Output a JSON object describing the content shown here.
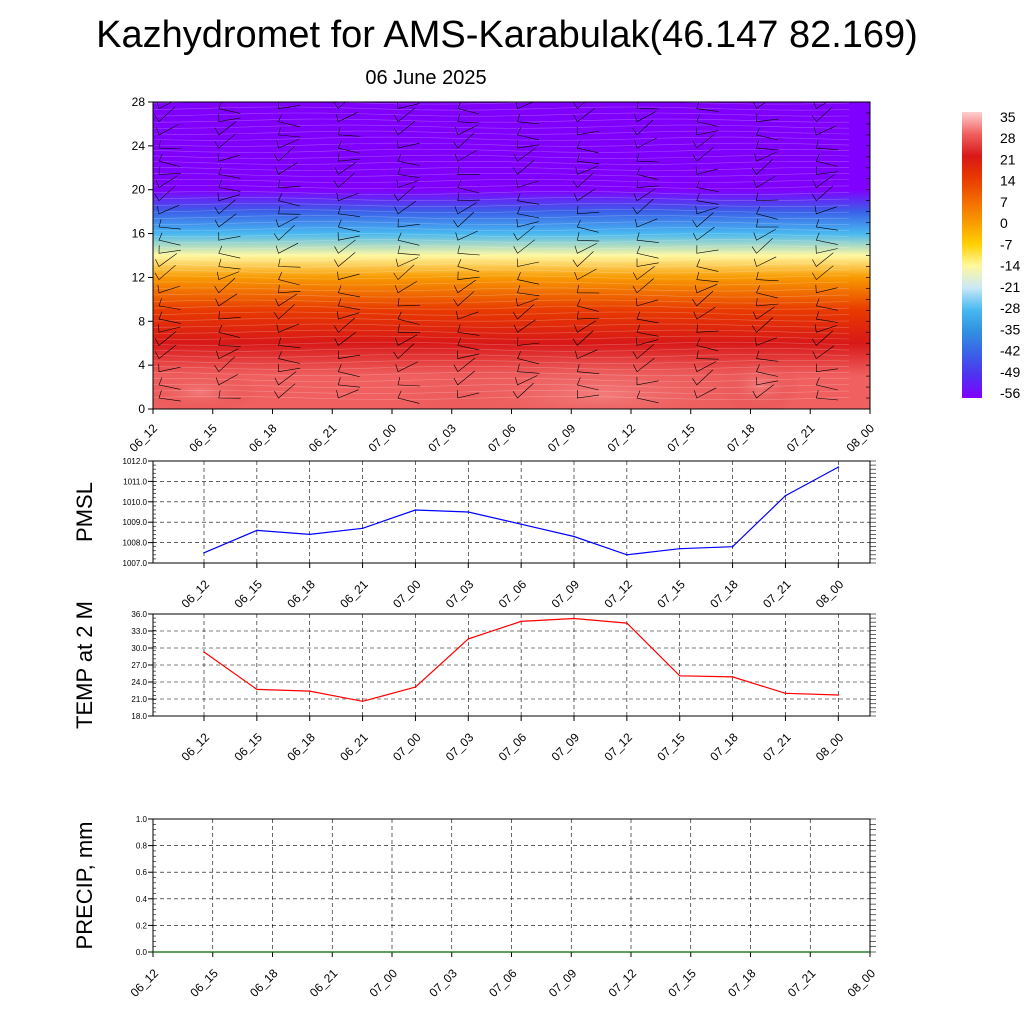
{
  "title": "Kazhydromet for AMS-Karabulak(46.147 82.169)",
  "date": "06 June 2025",
  "time_labels": [
    "06_12",
    "06_15",
    "06_18",
    "06_21",
    "07_00",
    "07_03",
    "07_06",
    "07_09",
    "07_12",
    "07_15",
    "07_18",
    "07_21",
    "08_00"
  ],
  "colorbar": {
    "labels": [
      "35",
      "28",
      "21",
      "14",
      "7",
      "0",
      "-7",
      "-14",
      "-21",
      "-28",
      "-35",
      "-42",
      "-49",
      "-56"
    ],
    "colors": [
      "#ffd0d0",
      "#f06060",
      "#d81818",
      "#e83a00",
      "#f26a00",
      "#f89a00",
      "#ffd000",
      "#fff8a0",
      "#c8e8f8",
      "#48b8f0",
      "#3090e0",
      "#3a60e8",
      "#5030f0",
      "#8000ff"
    ]
  },
  "chart_data": [
    {
      "type": "heatmap",
      "title": "",
      "ylabel": "",
      "ylim": [
        0,
        28
      ],
      "y_ticks": [
        "0",
        "4",
        "8",
        "12",
        "16",
        "20",
        "24",
        "28"
      ],
      "x": [
        "06_12",
        "06_15",
        "06_18",
        "06_21",
        "07_00",
        "07_03",
        "07_06",
        "07_09",
        "07_12",
        "07_15",
        "07_18",
        "07_21",
        "08_00"
      ],
      "colorbar_range": [
        -56,
        35
      ],
      "profile_by_level": [
        [
          0,
          30
        ],
        [
          3,
          28
        ],
        [
          6,
          22
        ],
        [
          9,
          12
        ],
        [
          12,
          2
        ],
        [
          14,
          -12
        ],
        [
          16,
          -28
        ],
        [
          18,
          -42
        ],
        [
          20,
          -54
        ],
        [
          22,
          -58
        ],
        [
          25,
          -56
        ],
        [
          28,
          -54
        ]
      ]
    },
    {
      "type": "line",
      "ylabel": "PMSL",
      "ylim": [
        1007.0,
        1012.0
      ],
      "y_ticks": [
        "1007.0",
        "1008.0",
        "1009.0",
        "1010.0",
        "1011.0",
        "1012.0"
      ],
      "x": [
        "06_12",
        "06_15",
        "06_18",
        "06_21",
        "07_00",
        "07_03",
        "07_06",
        "07_09",
        "07_12",
        "07_15",
        "07_18",
        "07_21",
        "08_00"
      ],
      "series": [
        {
          "color": "#0000ff",
          "values": [
            1007.5,
            1008.6,
            1008.4,
            1008.7,
            1009.6,
            1009.5,
            1008.9,
            1008.3,
            1007.4,
            1007.7,
            1007.8,
            1010.3,
            1011.7
          ]
        }
      ]
    },
    {
      "type": "line",
      "ylabel": "TEMP at 2 M",
      "ylim": [
        18.0,
        36.0
      ],
      "y_ticks": [
        "18.0",
        "21.0",
        "24.0",
        "27.0",
        "30.0",
        "33.0",
        "36.0"
      ],
      "x": [
        "06_12",
        "06_15",
        "06_18",
        "06_21",
        "07_00",
        "07_03",
        "07_06",
        "07_09",
        "07_12",
        "07_15",
        "07_18",
        "07_21",
        "08_00"
      ],
      "series": [
        {
          "color": "#ff0000",
          "values": [
            29.3,
            22.7,
            22.4,
            20.6,
            23.1,
            31.6,
            34.7,
            35.2,
            34.4,
            25.1,
            24.9,
            22.0,
            21.7
          ]
        }
      ]
    },
    {
      "type": "line",
      "ylabel": "PRECIP, mm",
      "ylim": [
        0.0,
        1.0
      ],
      "y_ticks": [
        "0.0",
        "0.2",
        "0.4",
        "0.6",
        "0.8",
        "1.0"
      ],
      "x": [
        "06_12",
        "06_15",
        "06_18",
        "06_21",
        "07_00",
        "07_03",
        "07_06",
        "07_09",
        "07_12",
        "07_15",
        "07_18",
        "07_21",
        "08_00"
      ],
      "series": [
        {
          "color": "#006400",
          "values": [
            0,
            0,
            0,
            0,
            0,
            0,
            0,
            0,
            0,
            0,
            0,
            0,
            0
          ]
        }
      ]
    }
  ]
}
